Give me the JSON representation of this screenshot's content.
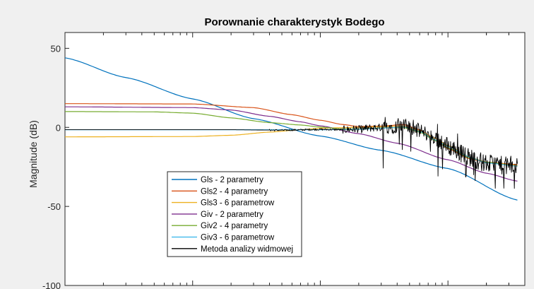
{
  "chart_data": {
    "type": "line",
    "title": "Porownanie charakterystyk Bodego",
    "ylabel": "Magnitude (dB)",
    "xlabel": "",
    "xscale": "log",
    "xlim": [
      0.001,
      4.0
    ],
    "ylim": [
      -100,
      60
    ],
    "yticks": [
      50,
      0,
      -50,
      -100
    ],
    "grid": false,
    "legend_position": "lower-left",
    "series": [
      {
        "name": "Gls - 2 parametry",
        "color": "#0072bd",
        "x": [
          0.001,
          0.003,
          0.01,
          0.03,
          0.1,
          0.3,
          1.0,
          3.5
        ],
        "y": [
          44.0,
          31.5,
          18.0,
          5.5,
          -5.5,
          -14.5,
          -26.0,
          -46.0
        ]
      },
      {
        "name": "Gls2 - 4 parametry",
        "color": "#d95319",
        "x": [
          0.001,
          0.01,
          0.03,
          0.06,
          0.1,
          0.15,
          0.2,
          0.3,
          0.45,
          0.6,
          0.8,
          1.0,
          1.5,
          2.0,
          3.5
        ],
        "y": [
          15.0,
          14.8,
          12.5,
          8.0,
          4.5,
          1.8,
          0.5,
          0.8,
          1.8,
          -1.5,
          -8.0,
          -13.5,
          -20.0,
          -22.0,
          -23.5
        ]
      },
      {
        "name": "Gls3 - 6 parametrow",
        "color": "#edb120",
        "x": [
          0.001,
          0.01,
          0.02,
          0.04,
          0.07,
          0.1,
          0.15,
          0.2,
          0.3,
          0.45,
          0.6,
          0.8,
          1.0,
          1.5,
          2.0,
          3.5
        ],
        "y": [
          -6.0,
          -5.8,
          -5.0,
          -3.0,
          -1.5,
          -0.5,
          -0.2,
          0.0,
          0.5,
          0.8,
          -2.0,
          -7.0,
          -11.5,
          -19.0,
          -22.0,
          -24.0
        ]
      },
      {
        "name": "Giv - 2 parametry",
        "color": "#7e2f8e",
        "x": [
          0.001,
          0.01,
          0.02,
          0.04,
          0.07,
          0.1,
          0.2,
          0.4,
          1.0,
          2.0,
          3.5
        ],
        "y": [
          13.0,
          12.5,
          11.0,
          7.0,
          3.5,
          1.0,
          -4.0,
          -10.0,
          -20.5,
          -29.0,
          -34.0
        ]
      },
      {
        "name": "Giv2 - 4 parametry",
        "color": "#77ac30",
        "x": [
          0.001,
          0.005,
          0.01,
          0.02,
          0.04,
          0.07,
          0.1,
          0.15,
          0.2,
          0.3,
          0.45,
          0.6,
          0.8,
          1.0,
          1.5,
          2.0,
          3.5
        ],
        "y": [
          10.0,
          9.8,
          9.0,
          6.0,
          3.0,
          1.5,
          0.2,
          -1.0,
          -1.0,
          -0.3,
          -0.2,
          -3.0,
          -8.5,
          -13.0,
          -19.5,
          -22.0,
          -24.5
        ]
      },
      {
        "name": "Giv3 - 6 parametrow",
        "color": "#4dbeee",
        "x": [
          0.001,
          0.01,
          0.05,
          0.1,
          0.2,
          0.3,
          0.45,
          0.6,
          0.8,
          1.0,
          1.5,
          2.0,
          3.5
        ],
        "y": [
          -1.5,
          -1.5,
          -1.5,
          -1.5,
          -1.3,
          -0.6,
          0.3,
          -2.5,
          -8.0,
          -12.0,
          -19.0,
          -22.5,
          -24.5
        ]
      },
      {
        "name": "Metoda analizy widmowej",
        "color": "#000000",
        "x": [
          0.001,
          0.02,
          0.05,
          0.1,
          0.15,
          0.2,
          0.3,
          0.45,
          0.6,
          0.8,
          1.0,
          1.5,
          2.0,
          3.5
        ],
        "y": [
          -1.5,
          -1.5,
          -1.8,
          -1.3,
          -1.5,
          -1.0,
          0.0,
          1.0,
          -2.0,
          -7.0,
          -12.0,
          -19.0,
          -23.0,
          -25.0
        ]
      }
    ]
  }
}
